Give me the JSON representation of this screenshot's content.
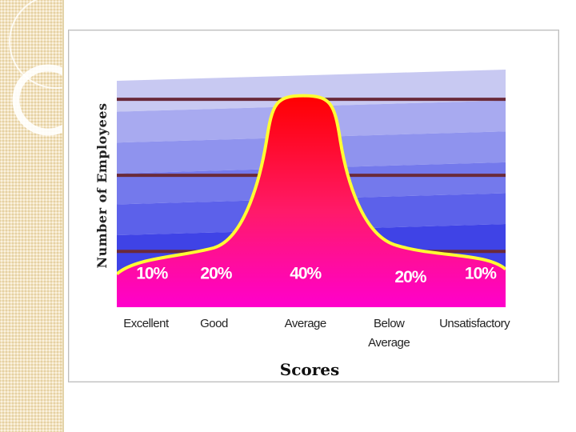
{
  "chart_data": {
    "type": "area",
    "xlabel": "Scores",
    "ylabel": "Number of Employees",
    "categories": [
      "Excellent",
      "Good",
      "Average",
      "Below Average",
      "Unsatisfactory"
    ],
    "category_lines": [
      [
        "Excellent"
      ],
      [
        "Good"
      ],
      [
        "Average"
      ],
      [
        "Below",
        "Average"
      ],
      [
        "Unsatisfactory"
      ]
    ],
    "percent_labels": [
      "10%",
      "20%",
      "40%",
      "20%",
      "10%"
    ],
    "values": [
      10,
      20,
      40,
      20,
      10
    ],
    "grid": true,
    "colors": {
      "background_bands": [
        "#c8c9f2",
        "#a8aaf0",
        "#8f93ee",
        "#7479ec",
        "#5c61ea",
        "#3f43e6"
      ],
      "gridline": "#6a2a3a",
      "curve_fill_top": "#ff0000",
      "curve_fill_mid": "#ff1a6a",
      "curve_fill_bottom": "#ff00cc",
      "curve_outline": "#ffff33",
      "label_text": "#ffffff"
    }
  },
  "slide": {
    "accent_strip_color": "#f3e3bf"
  }
}
